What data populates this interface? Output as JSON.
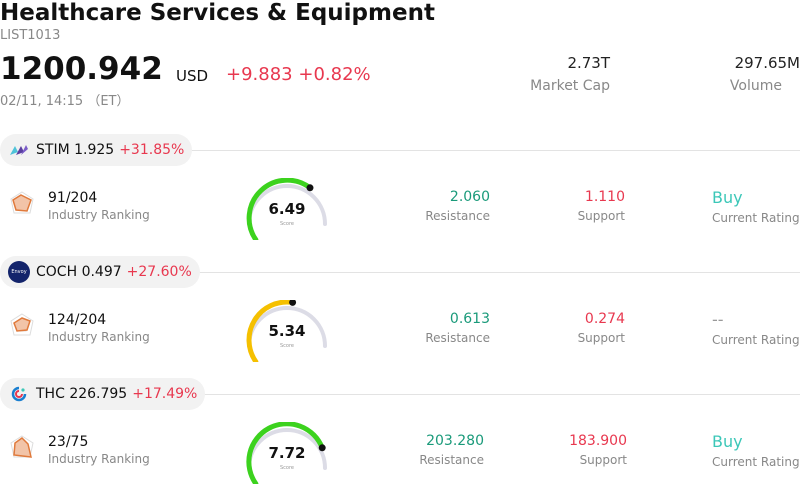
{
  "header": {
    "title": "Healthcare Services & Equipment",
    "ticker": "LIST1013",
    "price": "1200.942",
    "currency": "USD",
    "change_abs": "+9.883",
    "change_pct": "+0.82%",
    "timestamp": "02/11, 14:15 （ET）",
    "market_cap_value": "2.73T",
    "market_cap_label": "Market Cap",
    "volume_value": "297.65M",
    "volume_label": "Volume"
  },
  "colors": {
    "up_red": "#e8384f",
    "resistance_green": "#1a9a7a",
    "rating_buy": "#3cc7b8",
    "gauge_green": "#3cd21e",
    "gauge_yellow": "#f5c000",
    "gauge_track": "#dcdce6"
  },
  "labels": {
    "industry_ranking": "Industry Ranking",
    "score": "Score",
    "resistance": "Resistance",
    "support": "Support",
    "current_rating": "Current Rating"
  },
  "stocks": [
    {
      "symbol": "STIM",
      "price": "1.925",
      "change_pct": "+31.85%",
      "logo_icon": "stim-logo-icon",
      "ranking": "91/204",
      "score": "6.49",
      "score_fraction": 0.649,
      "gauge_color": "#3cd21e",
      "resistance": "2.060",
      "support": "1.110",
      "rating": "Buy"
    },
    {
      "symbol": "COCH",
      "price": "0.497",
      "change_pct": "+27.60%",
      "logo_icon": "coch-logo-icon",
      "logo_text": "Envoy",
      "ranking": "124/204",
      "score": "5.34",
      "score_fraction": 0.534,
      "gauge_color": "#f5c000",
      "resistance": "0.613",
      "support": "0.274",
      "rating": "--"
    },
    {
      "symbol": "THC",
      "price": "226.795",
      "change_pct": "+17.49%",
      "logo_icon": "thc-logo-icon",
      "ranking": "23/75",
      "score": "7.72",
      "score_fraction": 0.772,
      "gauge_color": "#3cd21e",
      "resistance": "203.280",
      "support": "183.900",
      "rating": "Buy"
    }
  ]
}
